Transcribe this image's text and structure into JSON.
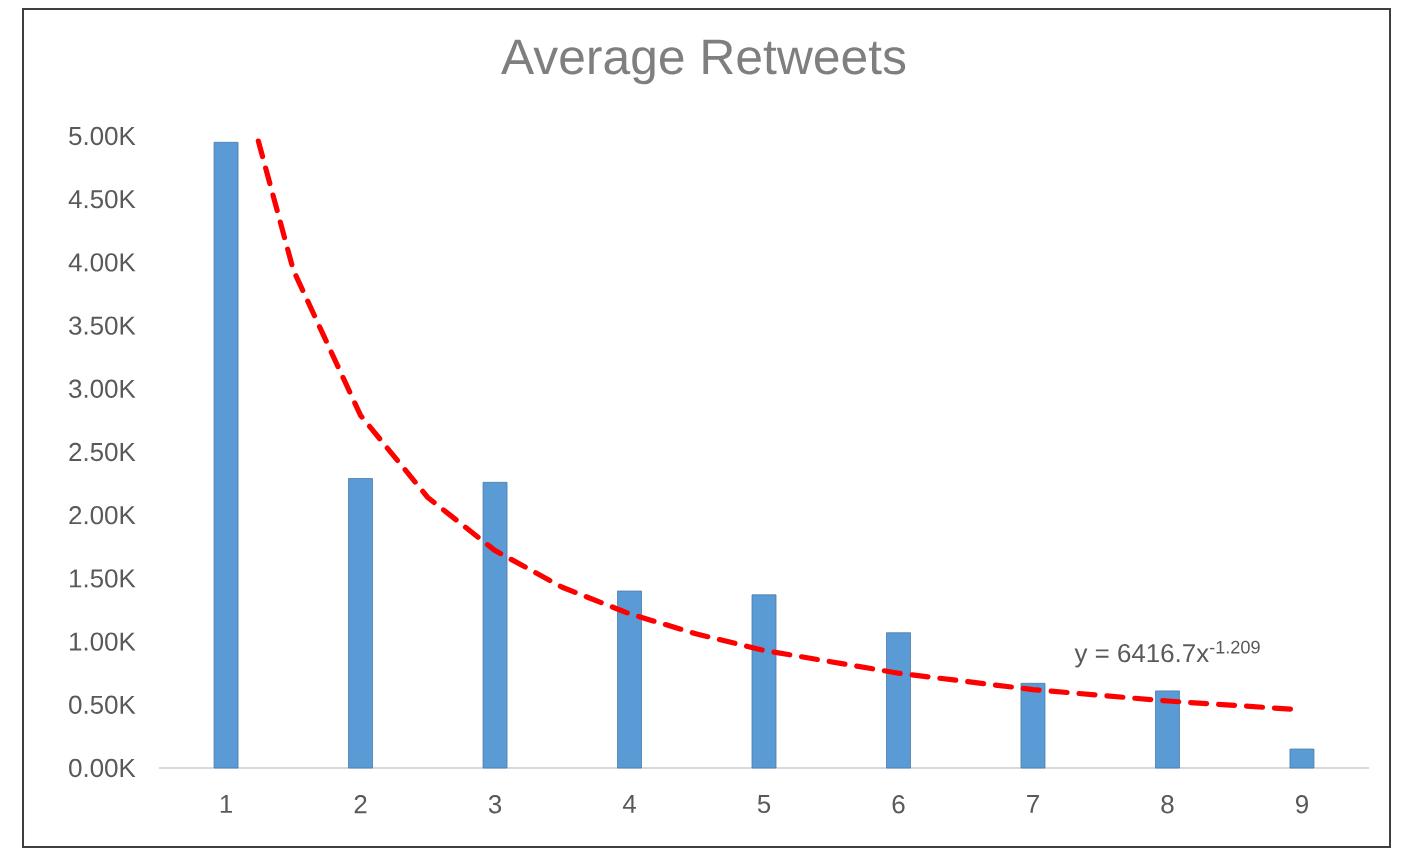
{
  "chart_data": {
    "type": "bar",
    "title": "Average Retweets",
    "x": [
      1,
      2,
      3,
      4,
      5,
      6,
      7,
      8,
      9
    ],
    "xlim": [
      0.5,
      9.5
    ],
    "xticks": [
      1,
      2,
      3,
      4,
      5,
      6,
      7,
      8,
      9
    ],
    "ylim": [
      0,
      5000
    ],
    "yticks": [
      {
        "value": 0,
        "label": "0.00K"
      },
      {
        "value": 500,
        "label": "0.50K"
      },
      {
        "value": 1000,
        "label": "1.00K"
      },
      {
        "value": 1500,
        "label": "1.50K"
      },
      {
        "value": 2000,
        "label": "2.00K"
      },
      {
        "value": 2500,
        "label": "2.50K"
      },
      {
        "value": 3000,
        "label": "3.00K"
      },
      {
        "value": 3500,
        "label": "3.50K"
      },
      {
        "value": 4000,
        "label": "4.00K"
      },
      {
        "value": 4500,
        "label": "4.50K"
      },
      {
        "value": 5000,
        "label": "5.00K"
      }
    ],
    "series": [
      {
        "color": "#5b9bd5",
        "values": [
          4950,
          2290,
          2260,
          1400,
          1370,
          1070,
          670,
          610,
          150
        ]
      },
      {
        "type": "line",
        "color": "#ff0000",
        "line_style": "dashed",
        "x": [
          1.24,
          1.5,
          2,
          2.5,
          3,
          3.5,
          4,
          4.5,
          5,
          6,
          7,
          8,
          9
        ],
        "values": [
          4960,
          3940,
          2790,
          2140,
          1720,
          1430,
          1220,
          1060,
          930,
          750,
          620,
          530,
          460
        ]
      }
    ],
    "annotations": [
      "y = 6416.7x$^{-1.209}$"
    ]
  }
}
